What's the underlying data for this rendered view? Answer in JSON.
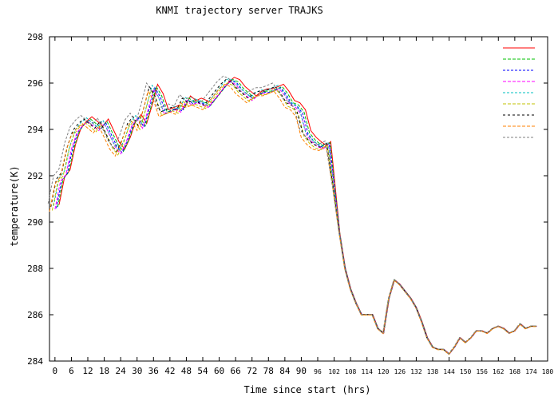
{
  "chart_data": {
    "type": "line",
    "title": "KNMI trajectory server TRAJKS",
    "xlabel": "Time since start (hrs)",
    "ylabel": "temperature(K)",
    "xlim": [
      -2,
      180
    ],
    "ylim": [
      284,
      298
    ],
    "x_ticks": [
      0,
      6,
      12,
      18,
      24,
      30,
      36,
      42,
      48,
      54,
      60,
      66,
      72,
      78,
      84,
      90,
      96,
      102,
      108,
      114,
      120,
      126,
      132,
      138,
      144,
      150,
      156,
      162,
      168,
      174,
      180
    ],
    "y_ticks": [
      284,
      286,
      288,
      290,
      292,
      294,
      296,
      298
    ],
    "grid": false,
    "legend_position": "top-right",
    "base_series": {
      "x": [
        0,
        2,
        4,
        6,
        8,
        10,
        12,
        14,
        16,
        18,
        20,
        22,
        24,
        26,
        28,
        30,
        32,
        34,
        36,
        38,
        40,
        42,
        44,
        46,
        48,
        50,
        52,
        54,
        56,
        58,
        60,
        62,
        64,
        66,
        68,
        70,
        72,
        74,
        76,
        78,
        80,
        82,
        84,
        86,
        88,
        90,
        92,
        94,
        96,
        98,
        100,
        102,
        104,
        106,
        108,
        110,
        112,
        114,
        116,
        118,
        120,
        122,
        124,
        126,
        128,
        130,
        132,
        134,
        136,
        138,
        140,
        142,
        144,
        146,
        148,
        150,
        152,
        154,
        156,
        158,
        160,
        162,
        164,
        166,
        168,
        170,
        172,
        174,
        176
      ],
      "y": [
        290.6,
        291.8,
        292.1,
        293.2,
        293.9,
        294.2,
        294.4,
        294.2,
        294.0,
        294.3,
        293.8,
        293.3,
        293.0,
        293.5,
        294.2,
        294.5,
        294.1,
        294.9,
        295.8,
        295.4,
        294.7,
        294.8,
        294.9,
        294.8,
        295.3,
        295.1,
        295.2,
        295.1,
        295.0,
        295.3,
        295.6,
        295.9,
        296.1,
        296.0,
        295.7,
        295.5,
        295.3,
        295.5,
        295.6,
        295.6,
        295.7,
        295.8,
        295.5,
        295.1,
        295.0,
        294.7,
        293.8,
        293.5,
        293.3,
        293.2,
        293.4,
        291.5,
        289.5,
        288.0,
        287.1,
        286.5,
        286.0,
        286.0,
        286.0,
        285.4,
        285.2,
        286.7,
        287.5,
        287.3,
        287.0,
        286.7,
        286.3,
        285.7,
        285.0,
        284.6,
        284.5,
        284.5,
        284.3,
        284.6,
        285.0,
        284.8,
        285.0,
        285.3,
        285.3,
        285.2,
        285.4,
        285.5,
        285.4,
        285.2,
        285.3,
        285.6,
        285.4,
        285.5,
        285.5
      ]
    },
    "series": [
      {
        "color": "#ff0000",
        "dash": "",
        "dx": 1.5,
        "dy": 0.15
      },
      {
        "color": "#00c000",
        "dash": "4,2",
        "dx": 1.0,
        "dy": 0.05
      },
      {
        "color": "#0000ff",
        "dash": "3,2",
        "dx": 0.5,
        "dy": 0.0
      },
      {
        "color": "#ff00ff",
        "dash": "4,2",
        "dx": 0.0,
        "dy": -0.05
      },
      {
        "color": "#00c0c0",
        "dash": "3,2",
        "dx": -0.5,
        "dy": 0.1
      },
      {
        "color": "#c0c000",
        "dash": "4,2",
        "dx": -1.0,
        "dy": -0.1
      },
      {
        "color": "#000000",
        "dash": "3,3",
        "dx": -1.5,
        "dy": 0.05
      },
      {
        "color": "#ff8000",
        "dash": "4,2",
        "dx": -2.0,
        "dy": -0.15
      },
      {
        "color": "#808080",
        "dash": "3,2",
        "dx": -2.5,
        "dy": 0.2
      }
    ]
  }
}
